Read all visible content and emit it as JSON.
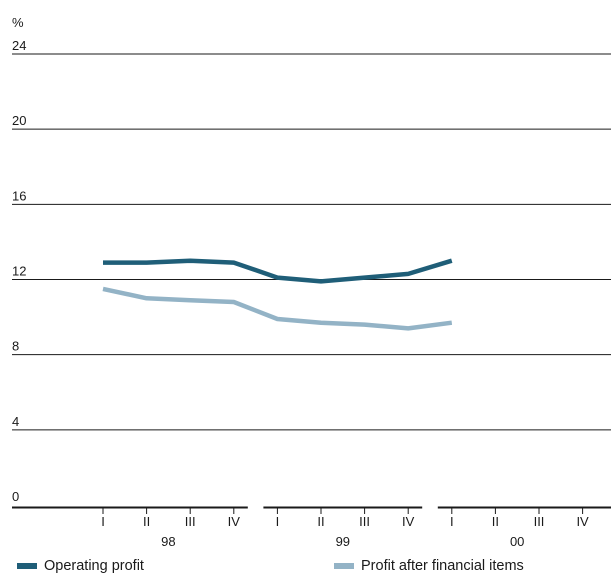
{
  "chart_data": {
    "type": "line",
    "ylabel": "%",
    "ylim": [
      0,
      24
    ],
    "yticks": [
      "0",
      "4",
      "8",
      "12",
      "16",
      "20",
      "24"
    ],
    "quarters": [
      "I",
      "II",
      "III",
      "IV",
      "I",
      "II",
      "III",
      "IV",
      "I",
      "II",
      "III",
      "IV"
    ],
    "years": [
      "98",
      "99",
      "00"
    ],
    "grid": true,
    "legend_position": "bottom",
    "series": [
      {
        "name": "Operating profit",
        "color": "#1f5e78",
        "values": [
          12.9,
          12.9,
          13.0,
          12.9,
          12.1,
          11.9,
          12.1,
          12.3,
          13.0,
          null,
          null,
          null
        ]
      },
      {
        "name": "Profit after financial items",
        "color": "#93b3c6",
        "values": [
          11.5,
          11.0,
          10.9,
          10.8,
          9.9,
          9.7,
          9.6,
          9.4,
          9.7,
          null,
          null,
          null
        ]
      }
    ]
  }
}
